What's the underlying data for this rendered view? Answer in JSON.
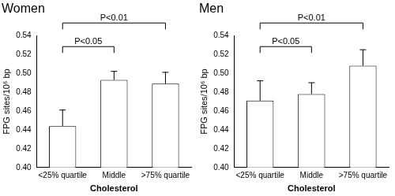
{
  "chart_data": [
    {
      "type": "bar",
      "title": "Women",
      "x_label": "Cholesterol",
      "y_label": "FPG sites/10⁶ bp",
      "categories": [
        "<25% quartile",
        "Middle",
        ">75% quartile"
      ],
      "values": [
        0.444,
        0.493,
        0.489
      ],
      "errors": [
        0.017,
        0.009,
        0.012
      ],
      "color": "#ffffff",
      "grid": false,
      "ylim": [
        0.4,
        0.54
      ],
      "yticks": [
        {
          "value": 0.4,
          "label": "0.40"
        },
        {
          "value": 0.42,
          "label": "0.42"
        },
        {
          "value": 0.44,
          "label": "0.44"
        },
        {
          "value": 0.46,
          "label": "0.46"
        },
        {
          "value": 0.48,
          "label": "0.48"
        },
        {
          "value": 0.5,
          "label": "0.50"
        },
        {
          "value": 0.52,
          "label": "0.52"
        },
        {
          "value": 0.54,
          "label": "0.54"
        }
      ],
      "annotations": [
        {
          "text": "P<0.05",
          "between": [
            "<25% quartile",
            "Middle"
          ]
        },
        {
          "text": "P<0.01",
          "between": [
            "<25% quartile",
            ">75% quartile"
          ]
        }
      ]
    },
    {
      "type": "bar",
      "title": "Men",
      "x_label": "Cholesterol",
      "y_label": "FPG sites/10⁶ bp",
      "categories": [
        "<25% quartile",
        "Middle",
        ">75% quartile"
      ],
      "values": [
        0.471,
        0.478,
        0.508
      ],
      "errors": [
        0.021,
        0.012,
        0.017
      ],
      "color": "#ffffff",
      "grid": false,
      "ylim": [
        0.4,
        0.54
      ],
      "yticks": [
        {
          "value": 0.4,
          "label": "0.40"
        },
        {
          "value": 0.42,
          "label": "0.42"
        },
        {
          "value": 0.44,
          "label": "0.44"
        },
        {
          "value": 0.46,
          "label": "0.46"
        },
        {
          "value": 0.48,
          "label": "0.48"
        },
        {
          "value": 0.5,
          "label": "0.50"
        },
        {
          "value": 0.52,
          "label": "0.52"
        },
        {
          "value": 0.54,
          "label": "0.54"
        }
      ],
      "annotations": [
        {
          "text": "P<0.05",
          "between": [
            "<25% quartile",
            "Middle"
          ]
        },
        {
          "text": "P<0.01",
          "between": [
            "<25% quartile",
            ">75% quartile"
          ]
        }
      ]
    }
  ]
}
